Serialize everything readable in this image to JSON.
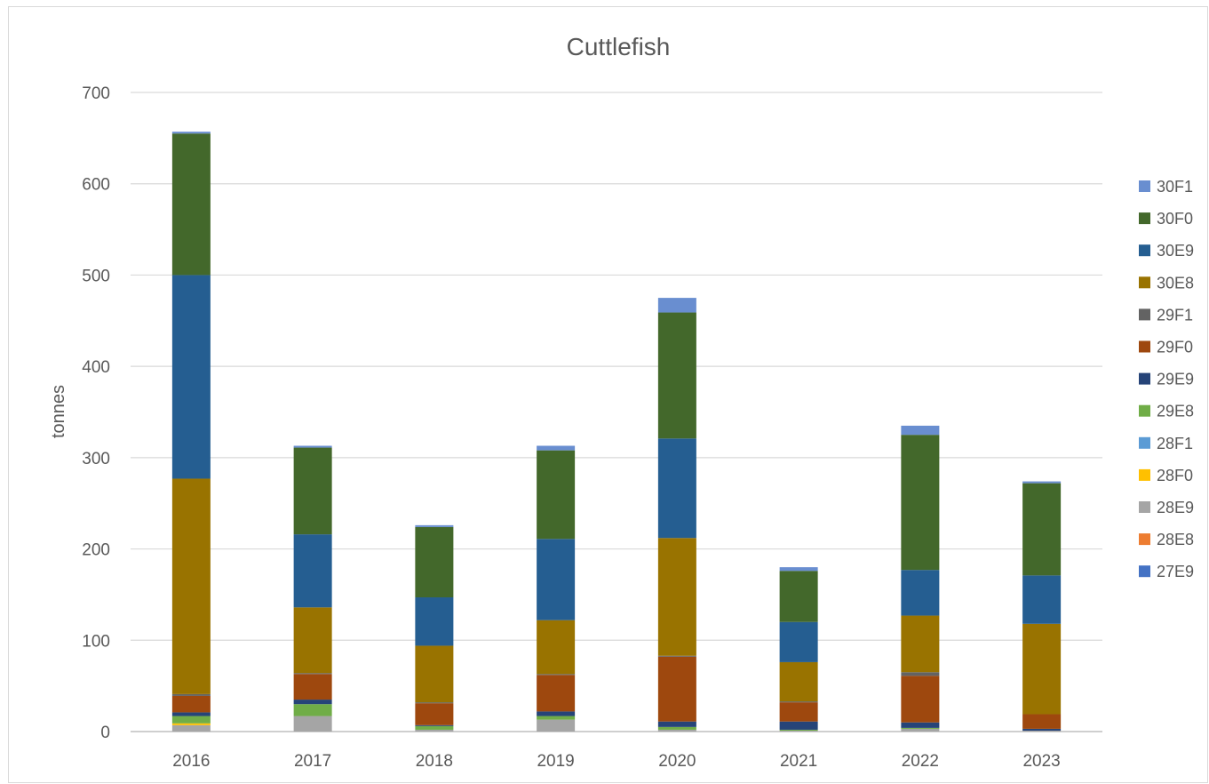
{
  "chart_data": {
    "type": "bar",
    "stacked": true,
    "title": "Cuttlefish",
    "ylabel": "tonnes",
    "xlabel": "",
    "ylim": [
      0,
      700
    ],
    "yticks": [
      0,
      100,
      200,
      300,
      400,
      500,
      600,
      700
    ],
    "grid": true,
    "legend_position": "right",
    "categories": [
      "2016",
      "2017",
      "2018",
      "2019",
      "2020",
      "2021",
      "2022",
      "2023"
    ],
    "series": [
      {
        "name": "27E9",
        "color": "#4472c4",
        "values": [
          0,
          0,
          0,
          0,
          0,
          0,
          0,
          0
        ]
      },
      {
        "name": "28E8",
        "color": "#ed7d31",
        "values": [
          0,
          0,
          0,
          0,
          0,
          0,
          0,
          0
        ]
      },
      {
        "name": "28E9",
        "color": "#a5a5a5",
        "values": [
          7,
          17,
          2,
          13,
          2,
          1,
          3,
          1
        ]
      },
      {
        "name": "28F0",
        "color": "#ffc000",
        "values": [
          2,
          0,
          0,
          0,
          0,
          0,
          0,
          0
        ]
      },
      {
        "name": "28F1",
        "color": "#5b9bd5",
        "values": [
          0,
          0,
          0,
          0,
          0,
          0,
          0,
          0
        ]
      },
      {
        "name": "29E8",
        "color": "#70ad47",
        "values": [
          8,
          13,
          4,
          4,
          3,
          1,
          1,
          0
        ]
      },
      {
        "name": "29E9",
        "color": "#264478",
        "values": [
          4,
          5,
          1,
          5,
          6,
          9,
          6,
          2
        ]
      },
      {
        "name": "29F0",
        "color": "#9e480e",
        "values": [
          18,
          28,
          24,
          40,
          71,
          21,
          51,
          16
        ]
      },
      {
        "name": "29F1",
        "color": "#636363",
        "values": [
          2,
          1,
          1,
          1,
          1,
          1,
          4,
          0
        ]
      },
      {
        "name": "30E8",
        "color": "#997300",
        "values": [
          236,
          72,
          62,
          59,
          129,
          43,
          62,
          99
        ]
      },
      {
        "name": "30E9",
        "color": "#255e91",
        "values": [
          223,
          80,
          53,
          89,
          109,
          44,
          50,
          53
        ]
      },
      {
        "name": "30F0",
        "color": "#43682b",
        "values": [
          155,
          95,
          77,
          97,
          138,
          56,
          148,
          101
        ]
      },
      {
        "name": "30F1",
        "color": "#698ed0",
        "values": [
          2,
          2,
          2,
          5,
          16,
          4,
          10,
          2
        ]
      }
    ]
  }
}
